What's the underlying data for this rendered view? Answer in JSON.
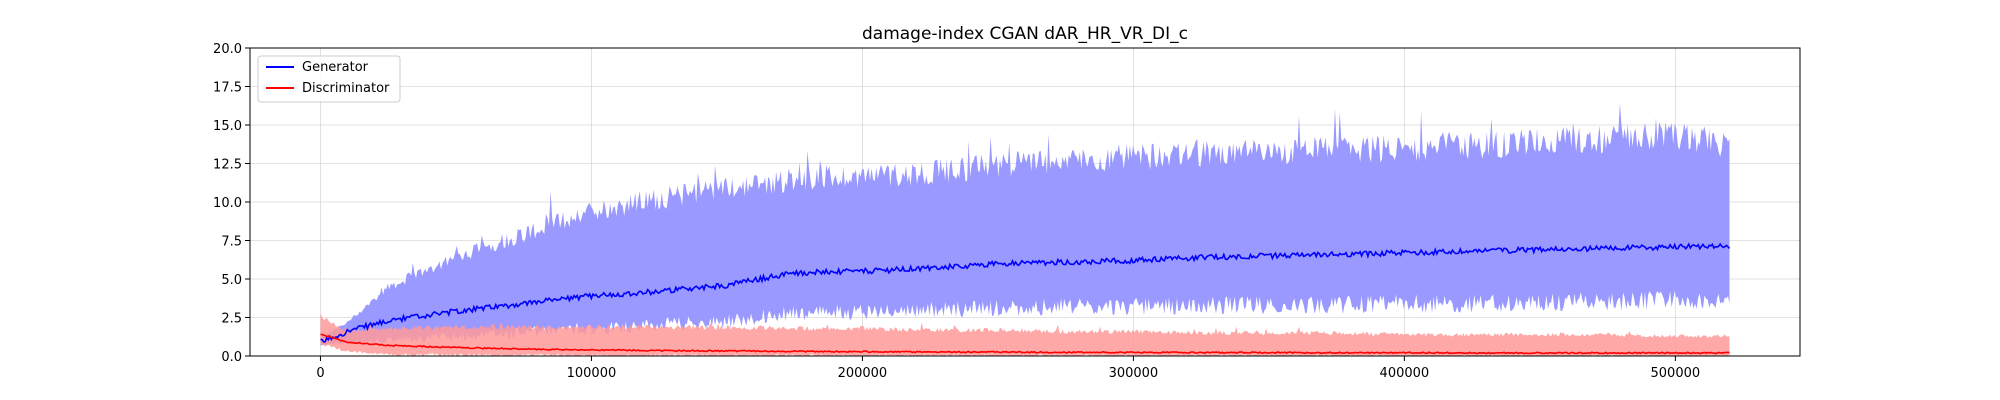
{
  "chart_data": {
    "type": "line",
    "title": "damage-index   CGAN    dAR_HR_VR_DI_c",
    "xlabel": "",
    "ylabel": "",
    "xlim": [
      -26000,
      546000
    ],
    "ylim": [
      0,
      20
    ],
    "x_ticks": [
      0,
      100000,
      200000,
      300000,
      400000,
      500000
    ],
    "x_tick_labels": [
      "0",
      "100000",
      "200000",
      "300000",
      "400000",
      "500000"
    ],
    "y_ticks": [
      0,
      2.5,
      5,
      7.5,
      10,
      12.5,
      15,
      17.5,
      20
    ],
    "y_tick_labels": [
      "0.0",
      "2.5",
      "5.0",
      "7.5",
      "10.0",
      "12.5",
      "15.0",
      "17.5",
      "20.0"
    ],
    "grid": true,
    "legend_position": "top-left",
    "series": [
      {
        "name": "Generator",
        "color": "#0000ff",
        "band_color": "#9999ff",
        "x": [
          0,
          10000,
          25000,
          50000,
          75000,
          100000,
          125000,
          150000,
          165000,
          175000,
          200000,
          225000,
          250000,
          275000,
          300000,
          325000,
          350000,
          375000,
          400000,
          425000,
          450000,
          475000,
          500000,
          520000
        ],
        "mean": [
          0.9,
          1.6,
          2.3,
          2.9,
          3.4,
          3.9,
          4.2,
          4.6,
          5.1,
          5.4,
          5.5,
          5.7,
          6.0,
          6.1,
          6.2,
          6.4,
          6.5,
          6.6,
          6.7,
          6.8,
          6.9,
          7.0,
          7.1,
          7.1
        ],
        "upper": [
          1.2,
          2.2,
          4.5,
          6.5,
          8.0,
          9.5,
          10.3,
          11.0,
          11.3,
          11.6,
          11.8,
          12.0,
          12.5,
          12.8,
          13.0,
          13.2,
          13.3,
          13.5,
          13.6,
          13.8,
          14.0,
          14.2,
          14.4,
          13.8
        ],
        "lower": [
          0.7,
          0.9,
          1.0,
          1.3,
          1.5,
          1.8,
          2.0,
          2.2,
          2.6,
          2.8,
          2.9,
          3.0,
          3.1,
          3.2,
          3.2,
          3.3,
          3.3,
          3.3,
          3.4,
          3.4,
          3.5,
          3.5,
          3.6,
          3.7
        ]
      },
      {
        "name": "Discriminator",
        "color": "#ff0000",
        "band_color": "#ff9999",
        "x": [
          0,
          10000,
          25000,
          50000,
          75000,
          100000,
          125000,
          150000,
          175000,
          200000,
          225000,
          250000,
          275000,
          300000,
          325000,
          350000,
          375000,
          400000,
          425000,
          450000,
          475000,
          500000,
          520000
        ],
        "mean": [
          1.4,
          0.9,
          0.7,
          0.55,
          0.45,
          0.4,
          0.35,
          0.33,
          0.3,
          0.28,
          0.26,
          0.25,
          0.24,
          0.23,
          0.22,
          0.22,
          0.21,
          0.21,
          0.2,
          0.2,
          0.2,
          0.2,
          0.2
        ],
        "upper": [
          2.6,
          1.6,
          1.8,
          1.9,
          1.9,
          1.9,
          1.9,
          1.9,
          1.8,
          1.8,
          1.7,
          1.7,
          1.6,
          1.6,
          1.5,
          1.5,
          1.5,
          1.4,
          1.4,
          1.4,
          1.4,
          1.3,
          1.3
        ],
        "lower": [
          0.8,
          0.3,
          0.1,
          0.05,
          0.02,
          0.01,
          0.01,
          0.01,
          0.01,
          0.01,
          0.01,
          0.0,
          0.0,
          0.0,
          0.0,
          0.0,
          0.0,
          0.0,
          0.0,
          0.0,
          0.0,
          0.0,
          0.0
        ]
      }
    ]
  }
}
